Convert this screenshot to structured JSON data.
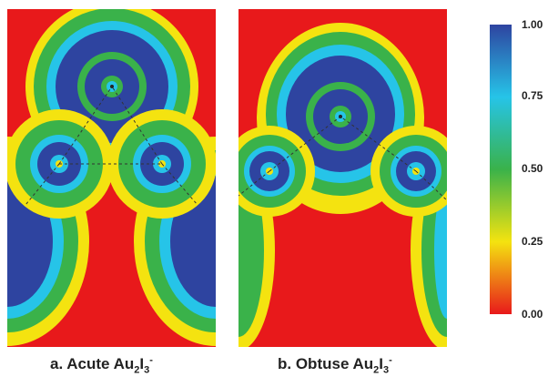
{
  "panels": [
    {
      "caption": {
        "prefix": "a. Acute Au",
        "sub1": "2",
        "mid": "I",
        "sub2": "3",
        "sup": "-"
      }
    },
    {
      "caption": {
        "prefix": "b. Obtuse Au",
        "sub1": "2",
        "mid": "I",
        "sub2": "3",
        "sup": "-"
      }
    }
  ],
  "colorbar": {
    "ticks": [
      "1.00",
      "0.75",
      "0.50",
      "0.25",
      "0.00"
    ],
    "colors": {
      "high": "#2e44a0",
      "upper": "#26c4e8",
      "mid": "#3ab24a",
      "lower": "#f4e310",
      "low": "#e8191b"
    }
  }
}
